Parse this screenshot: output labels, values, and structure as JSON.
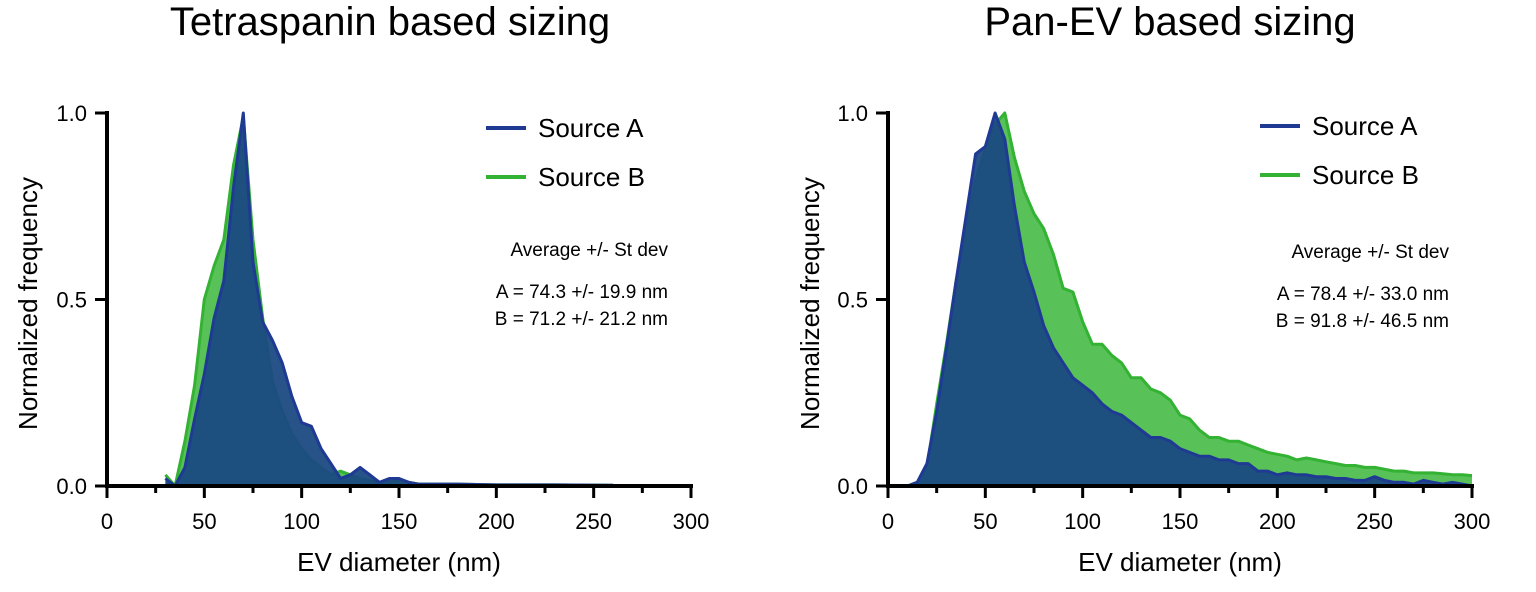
{
  "colors": {
    "source_a": "#1f3a93",
    "source_a_fill": "#1b4a82",
    "source_b": "#33b233",
    "source_b_fill": "#4fbf4f"
  },
  "chart_data": [
    {
      "type": "area",
      "title": "Tetraspanin based sizing",
      "xlabel": "EV diameter (nm)",
      "ylabel": "Normalized frequency",
      "xlim": [
        0,
        300
      ],
      "ylim": [
        0,
        1.0
      ],
      "xticks": [
        "0",
        "50",
        "100",
        "150",
        "200",
        "250",
        "300"
      ],
      "yticks": [
        "0.0",
        "0.5",
        "1.0"
      ],
      "legend_position": "top-right",
      "stats_header": "Average +/- St dev",
      "stats": [
        "A = 74.3 +/- 19.9 nm",
        "B = 71.2 +/- 21.2 nm"
      ],
      "series": [
        {
          "name": "Source B",
          "points": [
            [
              30,
              0.03
            ],
            [
              35,
              0.0
            ],
            [
              40,
              0.12
            ],
            [
              45,
              0.27
            ],
            [
              50,
              0.5
            ],
            [
              55,
              0.59
            ],
            [
              60,
              0.66
            ],
            [
              65,
              0.86
            ],
            [
              70,
              0.99
            ],
            [
              75,
              0.66
            ],
            [
              80,
              0.45
            ],
            [
              85,
              0.28
            ],
            [
              90,
              0.2
            ],
            [
              95,
              0.14
            ],
            [
              100,
              0.1
            ],
            [
              105,
              0.07
            ],
            [
              110,
              0.05
            ],
            [
              115,
              0.03
            ],
            [
              120,
              0.04
            ],
            [
              125,
              0.03
            ],
            [
              130,
              0.02
            ],
            [
              140,
              0.01
            ],
            [
              150,
              0.015
            ],
            [
              160,
              0.005
            ],
            [
              180,
              0.005
            ],
            [
              200,
              0.003
            ],
            [
              230,
              0.003
            ],
            [
              260,
              0.002
            ]
          ]
        },
        {
          "name": "Source A",
          "points": [
            [
              30,
              0.02
            ],
            [
              35,
              0.0
            ],
            [
              40,
              0.05
            ],
            [
              45,
              0.18
            ],
            [
              50,
              0.3
            ],
            [
              55,
              0.45
            ],
            [
              60,
              0.55
            ],
            [
              65,
              0.8
            ],
            [
              70,
              1.0
            ],
            [
              75,
              0.6
            ],
            [
              80,
              0.44
            ],
            [
              85,
              0.39
            ],
            [
              90,
              0.33
            ],
            [
              95,
              0.24
            ],
            [
              100,
              0.17
            ],
            [
              105,
              0.16
            ],
            [
              110,
              0.1
            ],
            [
              115,
              0.06
            ],
            [
              120,
              0.02
            ],
            [
              125,
              0.03
            ],
            [
              130,
              0.05
            ],
            [
              135,
              0.03
            ],
            [
              140,
              0.01
            ],
            [
              145,
              0.02
            ],
            [
              150,
              0.02
            ],
            [
              155,
              0.01
            ],
            [
              160,
              0.005
            ],
            [
              180,
              0.005
            ],
            [
              200,
              0.003
            ],
            [
              230,
              0.003
            ],
            [
              260,
              0.002
            ]
          ]
        }
      ]
    },
    {
      "type": "area",
      "title": "Pan-EV based sizing",
      "xlabel": "EV diameter (nm)",
      "ylabel": "Normalized frequency",
      "xlim": [
        0,
        300
      ],
      "ylim": [
        0,
        1.0
      ],
      "xticks": [
        "0",
        "50",
        "100",
        "150",
        "200",
        "250",
        "300"
      ],
      "yticks": [
        "0.0",
        "0.5",
        "1.0"
      ],
      "legend_position": "top-right",
      "stats_header": "Average +/- St dev",
      "stats": [
        "A = 78.4 +/- 33.0 nm",
        "B = 91.8 +/- 46.5 nm"
      ],
      "series": [
        {
          "name": "Source B",
          "points": [
            [
              10,
              0.0
            ],
            [
              15,
              0.01
            ],
            [
              20,
              0.05
            ],
            [
              25,
              0.22
            ],
            [
              30,
              0.38
            ],
            [
              35,
              0.55
            ],
            [
              40,
              0.68
            ],
            [
              45,
              0.82
            ],
            [
              50,
              0.9
            ],
            [
              55,
              0.97
            ],
            [
              60,
              1.0
            ],
            [
              65,
              0.88
            ],
            [
              70,
              0.79
            ],
            [
              75,
              0.73
            ],
            [
              80,
              0.69
            ],
            [
              85,
              0.62
            ],
            [
              90,
              0.53
            ],
            [
              95,
              0.52
            ],
            [
              100,
              0.44
            ],
            [
              105,
              0.38
            ],
            [
              110,
              0.38
            ],
            [
              115,
              0.35
            ],
            [
              120,
              0.33
            ],
            [
              125,
              0.29
            ],
            [
              130,
              0.29
            ],
            [
              135,
              0.26
            ],
            [
              140,
              0.25
            ],
            [
              145,
              0.23
            ],
            [
              150,
              0.19
            ],
            [
              155,
              0.18
            ],
            [
              160,
              0.15
            ],
            [
              165,
              0.13
            ],
            [
              170,
              0.13
            ],
            [
              175,
              0.12
            ],
            [
              180,
              0.12
            ],
            [
              185,
              0.11
            ],
            [
              190,
              0.1
            ],
            [
              195,
              0.09
            ],
            [
              200,
              0.085
            ],
            [
              205,
              0.08
            ],
            [
              210,
              0.07
            ],
            [
              215,
              0.075
            ],
            [
              220,
              0.07
            ],
            [
              225,
              0.065
            ],
            [
              230,
              0.06
            ],
            [
              235,
              0.055
            ],
            [
              240,
              0.055
            ],
            [
              245,
              0.05
            ],
            [
              250,
              0.05
            ],
            [
              255,
              0.045
            ],
            [
              260,
              0.04
            ],
            [
              265,
              0.04
            ],
            [
              270,
              0.035
            ],
            [
              275,
              0.035
            ],
            [
              280,
              0.035
            ],
            [
              285,
              0.033
            ],
            [
              290,
              0.03
            ],
            [
              295,
              0.03
            ],
            [
              300,
              0.028
            ]
          ]
        },
        {
          "name": "Source A",
          "points": [
            [
              10,
              0.0
            ],
            [
              15,
              0.01
            ],
            [
              20,
              0.06
            ],
            [
              25,
              0.2
            ],
            [
              30,
              0.37
            ],
            [
              35,
              0.55
            ],
            [
              40,
              0.72
            ],
            [
              45,
              0.89
            ],
            [
              50,
              0.91
            ],
            [
              55,
              1.0
            ],
            [
              60,
              0.93
            ],
            [
              65,
              0.75
            ],
            [
              70,
              0.6
            ],
            [
              75,
              0.52
            ],
            [
              80,
              0.43
            ],
            [
              85,
              0.37
            ],
            [
              90,
              0.33
            ],
            [
              95,
              0.29
            ],
            [
              100,
              0.27
            ],
            [
              105,
              0.25
            ],
            [
              110,
              0.22
            ],
            [
              115,
              0.2
            ],
            [
              120,
              0.19
            ],
            [
              125,
              0.17
            ],
            [
              130,
              0.15
            ],
            [
              135,
              0.13
            ],
            [
              140,
              0.13
            ],
            [
              145,
              0.12
            ],
            [
              150,
              0.1
            ],
            [
              155,
              0.09
            ],
            [
              160,
              0.08
            ],
            [
              165,
              0.08
            ],
            [
              170,
              0.07
            ],
            [
              175,
              0.07
            ],
            [
              180,
              0.06
            ],
            [
              185,
              0.06
            ],
            [
              190,
              0.04
            ],
            [
              195,
              0.04
            ],
            [
              200,
              0.03
            ],
            [
              205,
              0.035
            ],
            [
              210,
              0.03
            ],
            [
              215,
              0.03
            ],
            [
              220,
              0.025
            ],
            [
              225,
              0.025
            ],
            [
              230,
              0.02
            ],
            [
              235,
              0.02
            ],
            [
              240,
              0.015
            ],
            [
              245,
              0.015
            ],
            [
              250,
              0.025
            ],
            [
              255,
              0.015
            ],
            [
              260,
              0.01
            ],
            [
              265,
              0.01
            ],
            [
              270,
              0.005
            ],
            [
              275,
              0.015
            ],
            [
              280,
              0.01
            ],
            [
              285,
              0.005
            ],
            [
              290,
              0.01
            ],
            [
              295,
              0.005
            ],
            [
              300,
              0.0
            ]
          ]
        }
      ]
    }
  ]
}
